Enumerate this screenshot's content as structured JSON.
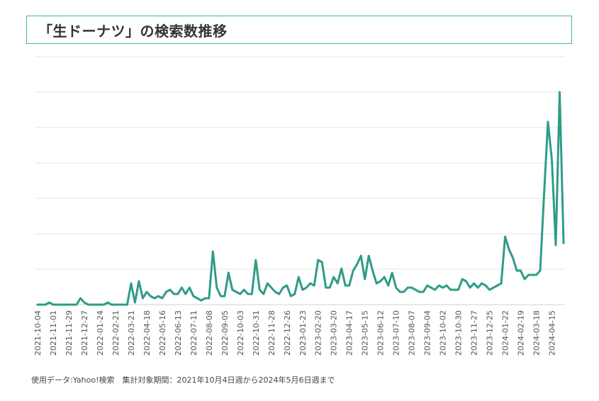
{
  "title": "「生ドーナツ」の検索数推移",
  "footer": "使用データ:Yahoo!検索　集計対象期間：2021年10月4日週から2024年5月6日週まで",
  "colors": {
    "line": "#2e9c88",
    "title_border": "#47b3a5",
    "grid": "#e6e6e6",
    "text": "#333333"
  },
  "chart_data": {
    "type": "line",
    "title": "「生ドーナツ」の検索数推移",
    "xlabel": "",
    "ylabel": "",
    "y_tick_labels_shown": false,
    "ylim": [
      0,
      100
    ],
    "tick_labels": [
      "2021-10-04",
      "2021-11-01",
      "2021-11-29",
      "2021-12-27",
      "2022-01-24",
      "2022-02-21",
      "2022-03-21",
      "2022-04-18",
      "2022-05-16",
      "2022-06-13",
      "2022-07-11",
      "2022-08-08",
      "2022-09-05",
      "2022-10-03",
      "2022-10-31",
      "2022-11-28",
      "2022-12-26",
      "2023-01-23",
      "2023-02-20",
      "2023-03-20",
      "2023-04-17",
      "2023-05-15",
      "2023-06-12",
      "2023-07-10",
      "2023-08-07",
      "2023-09-04",
      "2023-10-02",
      "2023-10-30",
      "2023-11-27",
      "2023-12-25",
      "2024-01-22",
      "2024-02-19",
      "2024-03-18",
      "2024-04-15"
    ],
    "tick_every": 4,
    "start_week": "2021-10-04",
    "end_week": "2024-05-06",
    "series": [
      {
        "name": "検索数",
        "values": [
          0,
          0,
          0,
          1,
          0,
          0,
          0,
          0,
          0,
          0,
          0,
          3,
          1,
          0,
          0,
          0,
          0,
          0,
          1,
          0,
          0,
          0,
          0,
          0,
          10,
          1,
          11,
          3,
          6,
          4,
          3,
          4,
          3,
          6,
          7,
          5,
          5,
          8,
          5,
          8,
          4,
          3,
          2,
          3,
          3,
          25,
          8,
          4,
          4,
          15,
          7,
          6,
          5,
          7,
          5,
          5,
          21,
          7,
          5,
          10,
          8,
          6,
          5,
          8,
          9,
          4,
          5,
          13,
          7,
          8,
          10,
          9,
          21,
          20,
          8,
          8,
          13,
          10,
          17,
          9,
          9,
          16,
          19,
          23,
          12,
          23,
          16,
          10,
          11,
          13,
          9,
          15,
          8,
          6,
          6,
          8,
          8,
          7,
          6,
          6,
          9,
          8,
          7,
          9,
          8,
          9,
          7,
          7,
          7,
          12,
          11,
          8,
          10,
          8,
          10,
          9,
          7,
          8,
          9,
          10,
          32,
          26,
          22,
          16,
          16,
          12,
          14,
          14,
          14,
          16,
          52,
          86,
          68,
          28,
          100,
          29
        ]
      }
    ]
  }
}
